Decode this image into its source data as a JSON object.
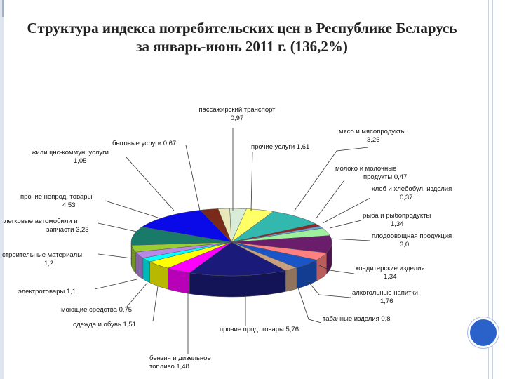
{
  "title_line1": "Структура индекса потребительских цен в Республике Беларусь",
  "title_line2": "за январь-июнь 2011 г. (136,2%)",
  "chart_data": {
    "type": "pie",
    "title": "Структура индекса потребительских цен в Республике Беларусь за январь-июнь 2011 г. (136,2%)",
    "slices": [
      {
        "name": "пассажирский транспорт",
        "value_label": "0,97",
        "value": 0.97,
        "color": "#d8ecd8"
      },
      {
        "name": "прочие услуги",
        "value_label": "1,61",
        "value": 1.61,
        "color": "#ffff66"
      },
      {
        "name": "мясо и мясопродукты",
        "value_label": "3,26",
        "value": 3.26,
        "color": "#33b8b0"
      },
      {
        "name": "молоко и молочные продукты",
        "value_label": "0,47",
        "value": 0.47,
        "color": "#8b2a2a"
      },
      {
        "name": "хлеб и хлебобул. изделия",
        "value_label": "0,37",
        "value": 0.37,
        "color": "#6fa0d8"
      },
      {
        "name": "рыба и рыбопродукты",
        "value_label": "1,34",
        "value": 1.34,
        "color": "#9ef09e"
      },
      {
        "name": "плодоовощная продукция",
        "value_label": "3,0",
        "value": 3.0,
        "color": "#6a1d6a"
      },
      {
        "name": "кондитерские изделия",
        "value_label": "1,34",
        "value": 1.34,
        "color": "#ff8080"
      },
      {
        "name": "алкогольные напитки",
        "value_label": "1,76",
        "value": 1.76,
        "color": "#1a55c8"
      },
      {
        "name": "табачные изделия",
        "value_label": "0,8",
        "value": 0.8,
        "color": "#c8a080"
      },
      {
        "name": "прочие прод. товары",
        "value_label": "5,76",
        "value": 5.76,
        "color": "#1a1a7a"
      },
      {
        "name": "бензин и дизельное топливо",
        "value_label": "1,48",
        "value": 1.48,
        "color": "#ff00ff"
      },
      {
        "name": "одежда и обувь",
        "value_label": "1,51",
        "value": 1.51,
        "color": "#ffff00"
      },
      {
        "name": "моющие средства",
        "value_label": "0,75",
        "value": 0.75,
        "color": "#00ffff"
      },
      {
        "name": "электротовары",
        "value_label": "1,1",
        "value": 1.1,
        "color": "#b888e8"
      },
      {
        "name": "строительные материалы",
        "value_label": "1,2",
        "value": 1.2,
        "color": "#9acd32"
      },
      {
        "name": "легковые автомобили и запчасти",
        "value_label": "3,23",
        "value": 3.23,
        "color": "#1a7a6a"
      },
      {
        "name": "прочие непрод. товары",
        "value_label": "4,53",
        "value": 4.53,
        "color": "#0a0ae8"
      },
      {
        "name": "жилищнс-коммун. услуги",
        "value_label": "1,05",
        "value": 1.05,
        "color": "#7a2a1a"
      },
      {
        "name": "бытовые услуги",
        "value_label": "0,67",
        "value": 0.67,
        "color": "#e8e8b8"
      }
    ],
    "labels": [
      {
        "lines": [
          "пассажирский транспорт",
          "0,97"
        ]
      },
      {
        "lines": [
          "прочие услуги 1,61"
        ]
      },
      {
        "lines": [
          "мясо и мясопродукты",
          "3,26"
        ]
      },
      {
        "lines": [
          "молоко и молочные",
          "продукты 0,47"
        ]
      },
      {
        "lines": [
          "хлеб и хлебобул. изделия",
          "0,37"
        ]
      },
      {
        "lines": [
          "рыба и рыбопродукты",
          "1,34"
        ]
      },
      {
        "lines": [
          "плодоовощная продукция",
          "3,0"
        ]
      },
      {
        "lines": [
          "кондитерские изделия",
          "1,34"
        ]
      },
      {
        "lines": [
          "алкогольные напитки",
          "1,76"
        ]
      },
      {
        "lines": [
          "табачные изделия 0,8"
        ]
      },
      {
        "lines": [
          "прочие прод. товары 5,76"
        ]
      },
      {
        "lines": [
          "бензин и дизельное",
          "топливо 1,48"
        ]
      },
      {
        "lines": [
          "одежда и обувь 1,51"
        ]
      },
      {
        "lines": [
          "моющие средства 0,75"
        ]
      },
      {
        "lines": [
          "электротовары 1,1"
        ]
      },
      {
        "lines": [
          "строительные материалы",
          "1,2"
        ]
      },
      {
        "lines": [
          "легковые автомобили и",
          "запчасти 3,23"
        ]
      },
      {
        "lines": [
          "прочие непрод. товары",
          "4,53"
        ]
      },
      {
        "lines": [
          "жилищнс-коммун. услуги",
          "1,05"
        ]
      },
      {
        "lines": [
          "бытовые услуги 0,67"
        ]
      }
    ]
  }
}
